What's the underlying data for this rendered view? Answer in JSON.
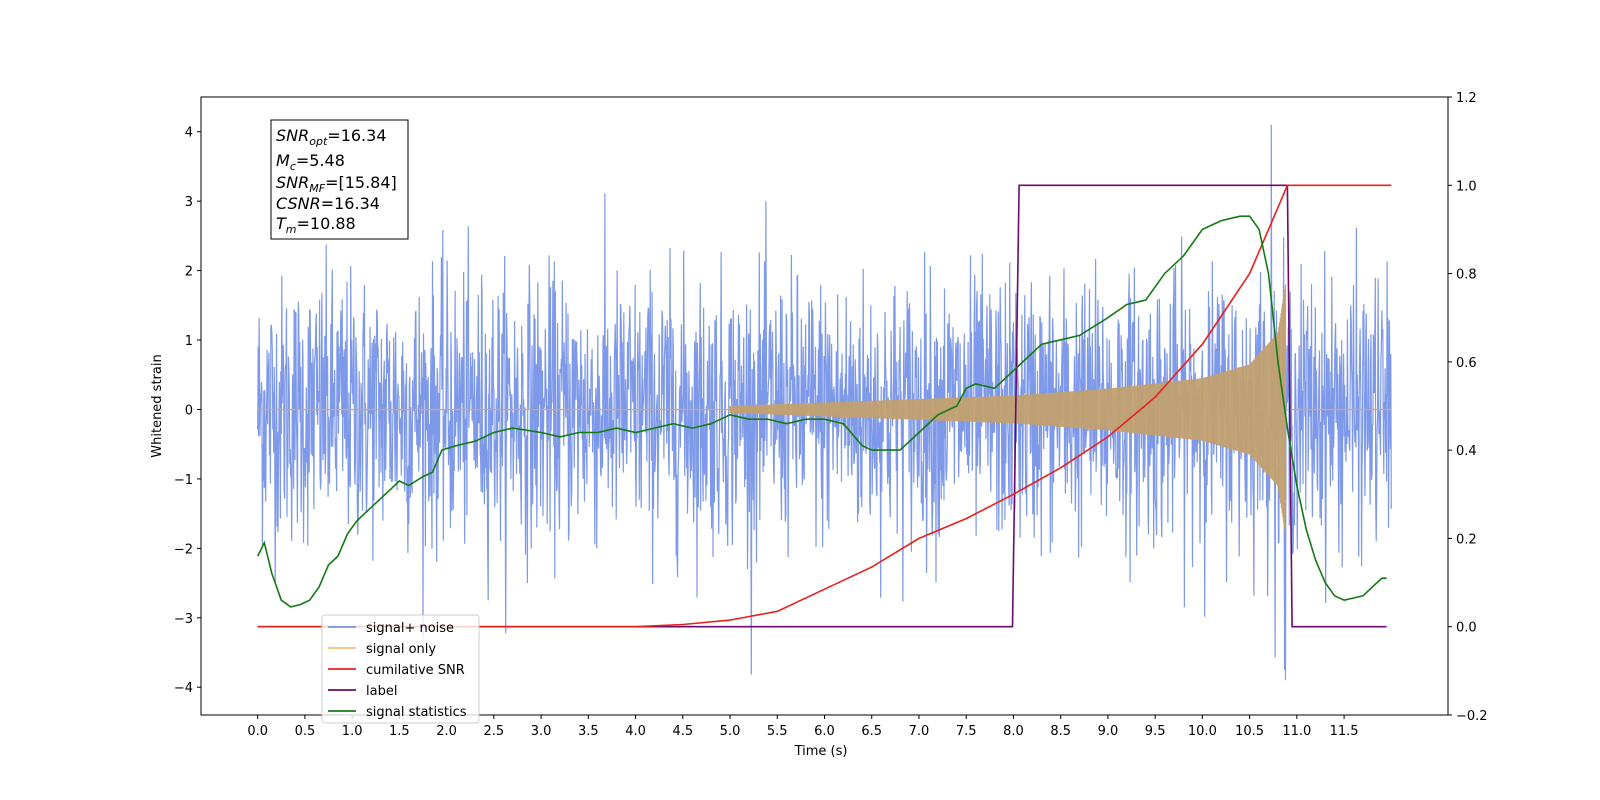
{
  "chart_data": {
    "type": "line",
    "xlabel": "Time (s)",
    "ylabel_left": "Whitened strain",
    "ylabel_right": "",
    "xlim": [
      -0.6,
      12.6
    ],
    "ylim_left": [
      -4.4,
      4.5
    ],
    "ylim_right": [
      -0.2,
      1.2
    ],
    "x_ticks": [
      "0.0",
      "0.5",
      "1.0",
      "1.5",
      "2.0",
      "2.5",
      "3.0",
      "3.5",
      "4.0",
      "4.5",
      "5.0",
      "5.5",
      "6.0",
      "6.5",
      "7.0",
      "7.5",
      "8.0",
      "8.5",
      "9.0",
      "9.5",
      "10.0",
      "10.5",
      "11.0",
      "11.5"
    ],
    "y_ticks_left": [
      "4",
      "3",
      "2",
      "1",
      "0",
      "−1",
      "−2",
      "−3",
      "−4"
    ],
    "y_ticks_right": [
      "1.2",
      "1.0",
      "0.8",
      "0.6",
      "0.4",
      "0.2",
      "0.0",
      "−0.2"
    ],
    "legend": {
      "placement": "lower-left",
      "entries": [
        {
          "label": "signal+ noise",
          "color": "#7794e8"
        },
        {
          "label": "signal only",
          "color": "#f5c26b"
        },
        {
          "label": "cumilative SNR",
          "color": "#e8201e"
        },
        {
          "label": "label",
          "color": "#6e0a6e"
        },
        {
          "label": "signal statistics",
          "color": "#147a14"
        }
      ]
    },
    "annotation": [
      {
        "base": "SNR",
        "sub": "opt",
        "value": "=16.34"
      },
      {
        "base": "M",
        "sub": "c",
        "value": "=5.48"
      },
      {
        "base": "SNR",
        "sub": "MF",
        "value": "=[15.84]"
      },
      {
        "base": "CSNR",
        "sub": "",
        "value": "=16.34"
      },
      {
        "base": "T",
        "sub": "m",
        "value": "=10.88"
      }
    ],
    "series": [
      {
        "name": "signal+ noise",
        "axis": "left",
        "color": "#7794e8",
        "x_range": [
          0.0,
          12.0
        ],
        "noise_envelope": {
          "typical": 1.8,
          "min": -3.9,
          "max": 4.1
        }
      },
      {
        "name": "signal only",
        "axis": "left",
        "color": "#f5c26b",
        "chirp_start": 5.0,
        "chirp_end": 10.88,
        "amplitude_x": [
          5.0,
          6.0,
          7.0,
          8.0,
          9.0,
          10.0,
          10.5,
          10.8,
          10.88
        ],
        "amplitude_y": [
          0.05,
          0.1,
          0.15,
          0.2,
          0.3,
          0.45,
          0.65,
          1.1,
          1.8
        ]
      },
      {
        "name": "cumilative SNR",
        "axis": "right",
        "color": "#e8201e",
        "x": [
          0.0,
          4.0,
          4.5,
          5.0,
          5.5,
          6.0,
          6.5,
          7.0,
          7.5,
          8.0,
          8.5,
          9.0,
          9.5,
          10.0,
          10.5,
          10.8,
          10.9,
          12.0
        ],
        "y": [
          0.0,
          0.0,
          0.005,
          0.015,
          0.035,
          0.085,
          0.135,
          0.2,
          0.245,
          0.3,
          0.36,
          0.43,
          0.52,
          0.64,
          0.8,
          0.95,
          1.0,
          1.0
        ]
      },
      {
        "name": "label",
        "axis": "right",
        "color": "#6e0a6e",
        "x": [
          0.0,
          7.99,
          8.06,
          10.9,
          10.95,
          11.95
        ],
        "y": [
          0.0,
          0.0,
          1.0,
          1.0,
          0.0,
          0.0
        ]
      },
      {
        "name": "signal statistics",
        "axis": "right",
        "color": "#147a14",
        "x": [
          0.0,
          0.07,
          0.15,
          0.25,
          0.35,
          0.45,
          0.55,
          0.65,
          0.75,
          0.85,
          0.95,
          1.05,
          1.15,
          1.25,
          1.4,
          1.5,
          1.6,
          1.75,
          1.85,
          1.95,
          2.1,
          2.3,
          2.5,
          2.7,
          3.0,
          3.2,
          3.4,
          3.6,
          3.8,
          4.0,
          4.2,
          4.4,
          4.6,
          4.8,
          5.0,
          5.2,
          5.4,
          5.6,
          5.8,
          6.0,
          6.2,
          6.4,
          6.5,
          6.6,
          6.8,
          7.0,
          7.2,
          7.4,
          7.5,
          7.6,
          7.8,
          8.0,
          8.2,
          8.3,
          8.5,
          8.7,
          9.0,
          9.2,
          9.4,
          9.6,
          9.8,
          10.0,
          10.2,
          10.4,
          10.5,
          10.6,
          10.7,
          10.8,
          10.9,
          11.0,
          11.1,
          11.2,
          11.3,
          11.4,
          11.5,
          11.6,
          11.7,
          11.8,
          11.9,
          11.95
        ],
        "y": [
          0.16,
          0.19,
          0.12,
          0.06,
          0.045,
          0.05,
          0.06,
          0.09,
          0.14,
          0.16,
          0.21,
          0.24,
          0.26,
          0.28,
          0.31,
          0.33,
          0.32,
          0.34,
          0.35,
          0.4,
          0.41,
          0.42,
          0.44,
          0.45,
          0.44,
          0.43,
          0.44,
          0.44,
          0.45,
          0.44,
          0.45,
          0.46,
          0.45,
          0.46,
          0.48,
          0.47,
          0.47,
          0.46,
          0.47,
          0.47,
          0.46,
          0.41,
          0.4,
          0.4,
          0.4,
          0.44,
          0.48,
          0.5,
          0.54,
          0.55,
          0.54,
          0.58,
          0.62,
          0.64,
          0.65,
          0.66,
          0.7,
          0.73,
          0.74,
          0.8,
          0.84,
          0.9,
          0.92,
          0.93,
          0.93,
          0.9,
          0.8,
          0.6,
          0.45,
          0.32,
          0.22,
          0.15,
          0.1,
          0.07,
          0.06,
          0.065,
          0.07,
          0.09,
          0.11,
          0.11
        ]
      }
    ]
  }
}
